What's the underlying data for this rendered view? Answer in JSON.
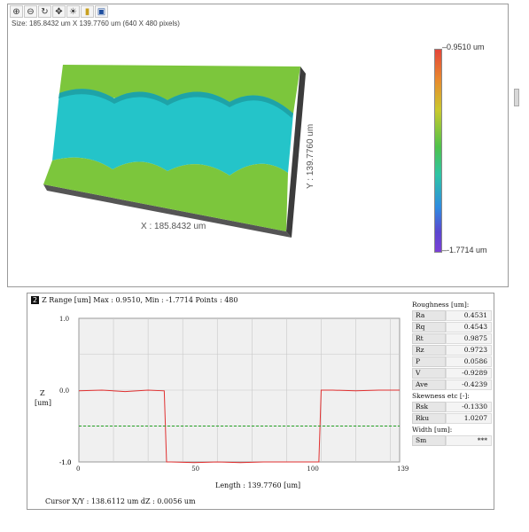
{
  "toolbar": {
    "icons": [
      "zoom-in-icon",
      "zoom-out-icon",
      "rotate-icon",
      "pan-icon",
      "light-icon",
      "palette-icon",
      "view-icon"
    ],
    "glyphs": [
      "⊕",
      "⊖",
      "↻",
      "✥",
      "☀",
      "▮",
      "▣"
    ]
  },
  "view3d": {
    "size_label": "Size: 185.8432 um X 139.7760 um (640 X 480 pixels)",
    "x_axis_label": "X : 185.8432 um",
    "y_axis_label": "Y : 139.7760 um",
    "colorbar_max": "0.9510 um",
    "colorbar_min": "-1.7714 um",
    "colors": {
      "terrace": "#7cc63c",
      "channel": "#22c3c8",
      "side": "#3f3f3f"
    }
  },
  "profile": {
    "panel_number": "2",
    "header": "Z Range [um] Max : 0.9510,  Min : -1.7714   Points : 480",
    "y_axis_title": "Z",
    "y_axis_unit": "[um]",
    "x_axis_title": "Length : 139.7760 [um]",
    "cursor_text": "Cursor  X/Y : 138.6112  um       dZ : 0.0056  um"
  },
  "chart_data": {
    "type": "line",
    "xlim": [
      0,
      139
    ],
    "ylim": [
      -1.0,
      1.0
    ],
    "x_ticks": [
      "0",
      "50",
      "100",
      "139"
    ],
    "y_ticks": [
      "1.0",
      "0.0",
      "-1.0",
      "-1.0"
    ],
    "grid": true,
    "series": [
      {
        "color": "#e03030",
        "x": [
          0,
          10,
          20,
          30,
          37,
          38,
          40,
          50,
          60,
          70,
          80,
          90,
          100,
          104,
          105,
          110,
          120,
          130,
          139
        ],
        "y": [
          -0.01,
          0.0,
          -0.02,
          0.0,
          -0.01,
          -1.0,
          -1.0,
          -1.01,
          -1.0,
          -1.01,
          -1.0,
          -1.0,
          -1.0,
          -1.0,
          0.0,
          0.0,
          -0.01,
          0.0,
          0.0
        ]
      },
      {
        "color": "#22a022",
        "dashed": true,
        "x": [
          0,
          139
        ],
        "y": [
          -0.5,
          -0.5
        ]
      }
    ]
  },
  "roughness": {
    "title": "Roughness [um]:",
    "rows": [
      {
        "k": "Ra",
        "v": "0.4531"
      },
      {
        "k": "Rq",
        "v": "0.4543"
      },
      {
        "k": "Rt",
        "v": "0.9875"
      },
      {
        "k": "Rz",
        "v": "0.9723"
      },
      {
        "k": "P",
        "v": "0.0586"
      },
      {
        "k": "V",
        "v": "-0.9289"
      },
      {
        "k": "Ave",
        "v": "-0.4239"
      }
    ],
    "skew_title": "Skewness etc [-]:",
    "skew_rows": [
      {
        "k": "Rsk",
        "v": "-0.1330"
      },
      {
        "k": "Rku",
        "v": "1.0207"
      }
    ],
    "width_title": "Width [um]:",
    "width_rows": [
      {
        "k": "Sm",
        "v": "***"
      }
    ]
  }
}
